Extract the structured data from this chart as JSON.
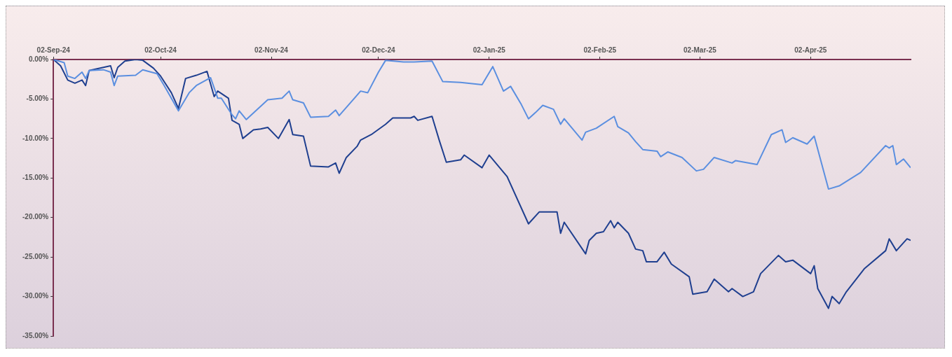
{
  "chart_data": {
    "type": "line",
    "xlim": [
      "2024-09-02",
      "2025-04-30"
    ],
    "xticks": [
      {
        "value": "2024-09-02",
        "label": "02-Sep-24"
      },
      {
        "value": "2024-10-02",
        "label": "02-Oct-24"
      },
      {
        "value": "2024-11-02",
        "label": "02-Nov-24"
      },
      {
        "value": "2024-12-02",
        "label": "02-Dec-24"
      },
      {
        "value": "2025-01-02",
        "label": "02-Jan-25"
      },
      {
        "value": "2025-02-02",
        "label": "02-Feb-25"
      },
      {
        "value": "2025-03-02",
        "label": "02-Mar-25"
      },
      {
        "value": "2025-04-02",
        "label": "02-Apr-25"
      }
    ],
    "ylim": [
      -35,
      0
    ],
    "yticks": [
      {
        "value": 0,
        "label": "0.00%"
      },
      {
        "value": -5,
        "label": "-5.00%"
      },
      {
        "value": -10,
        "label": "-10.00%"
      },
      {
        "value": -15,
        "label": "-15.00%"
      },
      {
        "value": -20,
        "label": "-20.00%"
      },
      {
        "value": -25,
        "label": "-25.00%"
      },
      {
        "value": -30,
        "label": "-30.00%"
      },
      {
        "value": -35,
        "label": "-35.00%"
      }
    ],
    "grid": false,
    "legend": false,
    "marker": "none",
    "line_style": "solid",
    "series": [
      {
        "color": "#5b8fe0",
        "x": [
          "2024-09-02",
          "2024-09-05",
          "2024-09-06",
          "2024-09-08",
          "2024-09-10",
          "2024-09-11",
          "2024-09-12",
          "2024-09-16",
          "2024-09-18",
          "2024-09-19",
          "2024-09-20",
          "2024-09-25",
          "2024-09-27",
          "2024-10-01",
          "2024-10-03",
          "2024-10-07",
          "2024-10-10",
          "2024-10-12",
          "2024-10-16",
          "2024-10-18",
          "2024-10-19",
          "2024-10-22",
          "2024-10-23",
          "2024-10-24",
          "2024-10-26",
          "2024-11-01",
          "2024-11-05",
          "2024-11-07",
          "2024-11-08",
          "2024-11-11",
          "2024-11-13",
          "2024-11-18",
          "2024-11-20",
          "2024-11-21",
          "2024-11-27",
          "2024-11-29",
          "2024-12-02",
          "2024-12-04",
          "2024-12-09",
          "2024-12-12",
          "2024-12-17",
          "2024-12-20",
          "2024-12-25",
          "2024-12-31",
          "2025-01-03",
          "2025-01-06",
          "2025-01-08",
          "2025-01-11",
          "2025-01-13",
          "2025-01-15",
          "2025-01-17",
          "2025-01-20",
          "2025-01-22",
          "2025-01-23",
          "2025-01-28",
          "2025-01-29",
          "2025-02-01",
          "2025-02-06",
          "2025-02-07",
          "2025-02-10",
          "2025-02-12",
          "2025-02-14",
          "2025-02-18",
          "2025-02-19",
          "2025-02-21",
          "2025-02-25",
          "2025-03-01",
          "2025-03-03",
          "2025-03-06",
          "2025-03-11",
          "2025-03-12",
          "2025-03-18",
          "2025-03-22",
          "2025-03-25",
          "2025-03-26",
          "2025-03-28",
          "2025-04-01",
          "2025-04-03",
          "2025-04-07",
          "2025-04-10",
          "2025-04-16",
          "2025-04-23",
          "2025-04-24",
          "2025-04-25",
          "2025-04-26",
          "2025-04-28",
          "2025-04-30"
        ],
        "values": [
          0,
          -0.4,
          -2.1,
          -2.4,
          -1.6,
          -2.4,
          -1.4,
          -1.3,
          -1.6,
          -3.3,
          -2.1,
          -2.0,
          -1.3,
          -1.8,
          -3.3,
          -6.5,
          -4.2,
          -3.3,
          -2.3,
          -4.9,
          -4.9,
          -7.0,
          -7.5,
          -6.5,
          -7.6,
          -5.1,
          -4.9,
          -4.0,
          -5.1,
          -5.5,
          -7.3,
          -7.2,
          -6.4,
          -7.1,
          -4.0,
          -4.2,
          -1.6,
          -0.1,
          -0.3,
          -0.3,
          -0.2,
          -2.8,
          -2.9,
          -3.2,
          -0.9,
          -4.0,
          -3.4,
          -5.7,
          -7.5,
          -6.7,
          -5.8,
          -6.3,
          -8.2,
          -7.5,
          -10.2,
          -9.2,
          -8.7,
          -7.2,
          -8.5,
          -9.3,
          -10.4,
          -11.4,
          -11.6,
          -12.3,
          -11.7,
          -12.4,
          -14.1,
          -13.9,
          -12.4,
          -13.1,
          -12.8,
          -13.3,
          -9.5,
          -8.9,
          -10.5,
          -9.9,
          -10.7,
          -9.7,
          -16.4,
          -16.0,
          -14.3,
          -10.9,
          -11.2,
          -10.9,
          -13.3,
          -12.6,
          -13.7
        ]
      },
      {
        "color": "#1f3f8f",
        "x": [
          "2024-09-02",
          "2024-09-04",
          "2024-09-06",
          "2024-09-08",
          "2024-09-10",
          "2024-09-11",
          "2024-09-12",
          "2024-09-18",
          "2024-09-19",
          "2024-09-20",
          "2024-09-22",
          "2024-09-25",
          "2024-09-27",
          "2024-09-30",
          "2024-10-02",
          "2024-10-05",
          "2024-10-07",
          "2024-10-09",
          "2024-10-12",
          "2024-10-15",
          "2024-10-17",
          "2024-10-18",
          "2024-10-21",
          "2024-10-22",
          "2024-10-24",
          "2024-10-25",
          "2024-10-28",
          "2024-10-30",
          "2024-11-01",
          "2024-11-04",
          "2024-11-07",
          "2024-11-08",
          "2024-11-11",
          "2024-11-13",
          "2024-11-18",
          "2024-11-20",
          "2024-11-21",
          "2024-11-23",
          "2024-11-26",
          "2024-11-27",
          "2024-11-30",
          "2024-12-04",
          "2024-12-06",
          "2024-12-11",
          "2024-12-12",
          "2024-12-13",
          "2024-12-17",
          "2024-12-19",
          "2024-12-21",
          "2024-12-25",
          "2024-12-26",
          "2024-12-31",
          "2025-01-02",
          "2025-01-07",
          "2025-01-13",
          "2025-01-16",
          "2025-01-21",
          "2025-01-22",
          "2025-01-23",
          "2025-01-29",
          "2025-01-30",
          "2025-02-01",
          "2025-02-03",
          "2025-02-05",
          "2025-02-06",
          "2025-02-07",
          "2025-02-10",
          "2025-02-12",
          "2025-02-14",
          "2025-02-15",
          "2025-02-18",
          "2025-02-20",
          "2025-02-22",
          "2025-02-27",
          "2025-02-28",
          "2025-03-04",
          "2025-03-06",
          "2025-03-10",
          "2025-03-11",
          "2025-03-14",
          "2025-03-17",
          "2025-03-19",
          "2025-03-24",
          "2025-03-26",
          "2025-03-28",
          "2025-04-02",
          "2025-04-03",
          "2025-04-04",
          "2025-04-07",
          "2025-04-08",
          "2025-04-10",
          "2025-04-12",
          "2025-04-17",
          "2025-04-23",
          "2025-04-24",
          "2025-04-26",
          "2025-04-29",
          "2025-04-30"
        ],
        "values": [
          0,
          -0.8,
          -2.6,
          -3.0,
          -2.6,
          -3.3,
          -1.4,
          -0.8,
          -2.3,
          -1.0,
          -0.2,
          0,
          -0.1,
          -1.1,
          -2.1,
          -4.2,
          -6.2,
          -2.4,
          -2.0,
          -1.5,
          -4.7,
          -4.0,
          -4.9,
          -7.7,
          -8.2,
          -10.0,
          -8.9,
          -8.8,
          -8.6,
          -10.0,
          -7.6,
          -9.5,
          -9.7,
          -13.5,
          -13.6,
          -13.1,
          -14.4,
          -12.4,
          -11.0,
          -10.2,
          -9.5,
          -8.2,
          -7.4,
          -7.4,
          -7.2,
          -7.7,
          -7.2,
          -10.2,
          -13.0,
          -12.7,
          -12.1,
          -13.7,
          -12.1,
          -14.8,
          -20.8,
          -19.3,
          -19.3,
          -22.0,
          -20.6,
          -24.6,
          -22.9,
          -22.0,
          -21.8,
          -20.4,
          -21.3,
          -20.6,
          -22.0,
          -24.0,
          -24.2,
          -25.6,
          -25.6,
          -24.4,
          -25.9,
          -27.5,
          -29.7,
          -29.4,
          -27.8,
          -29.4,
          -29.0,
          -30.0,
          -29.4,
          -27.1,
          -24.8,
          -25.6,
          -25.4,
          -27.1,
          -26.1,
          -29.0,
          -31.5,
          -30.0,
          -30.9,
          -29.4,
          -26.5,
          -24.2,
          -22.7,
          -24.2,
          -22.7,
          -22.9
        ]
      }
    ]
  }
}
